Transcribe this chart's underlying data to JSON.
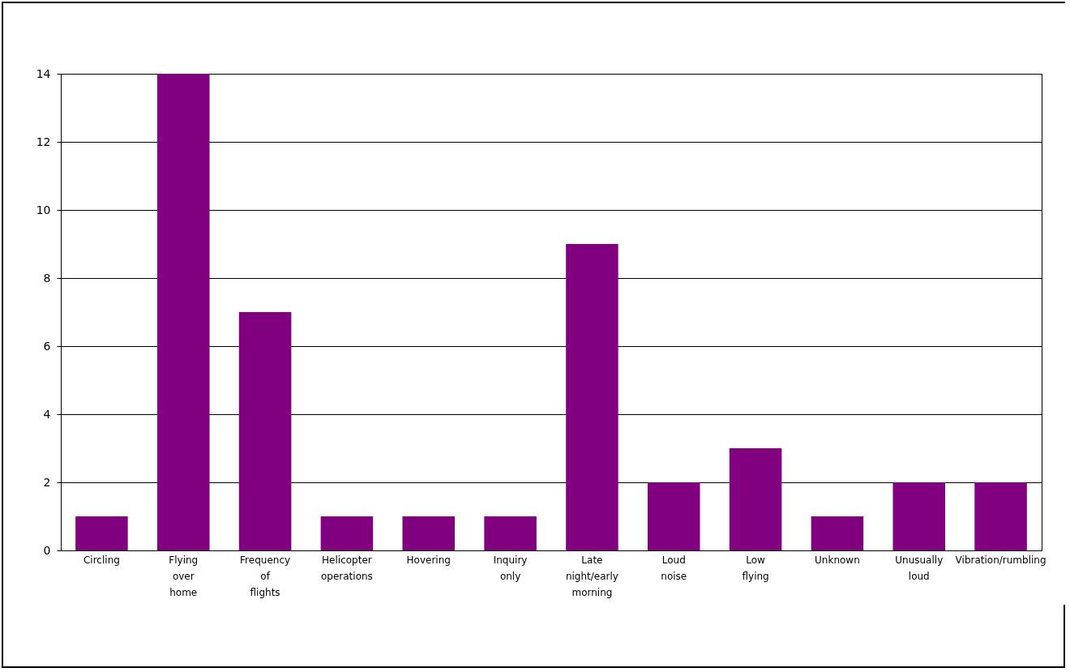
{
  "chart_data": {
    "type": "bar",
    "categories": [
      "Circling",
      "Flying over home",
      "Frequency of flights",
      "Helicopter operations",
      "Hovering",
      "Inquiry only",
      "Late night/early morning",
      "Loud noise",
      "Low flying",
      "Unknown",
      "Unusually loud",
      "Vibration/rumbling"
    ],
    "values": [
      1,
      14,
      7,
      1,
      1,
      1,
      9,
      2,
      3,
      1,
      2,
      2
    ],
    "color": "#800080",
    "ylim": [
      0,
      14
    ],
    "yticks": [
      0,
      2,
      4,
      6,
      8,
      10,
      12,
      14
    ],
    "grid": "y"
  }
}
